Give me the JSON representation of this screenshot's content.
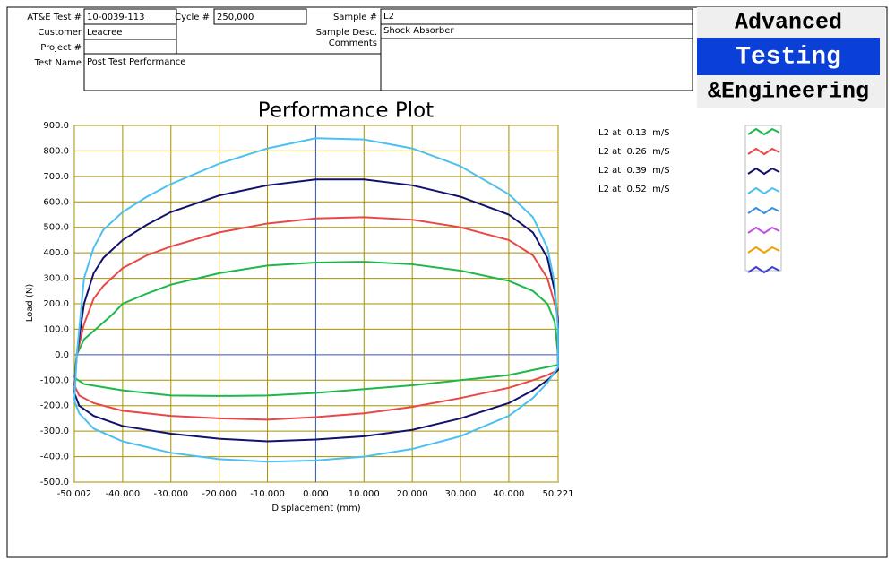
{
  "header": {
    "fields": [
      {
        "label": "AT&E Test #",
        "value": "10-0039-113"
      },
      {
        "label": "Customer",
        "value": "Leacree"
      },
      {
        "label": "Project #"
      },
      {
        "label": "Test Name",
        "value": "Post Test Performance"
      },
      {
        "label": "Cycle #",
        "value": "250,000"
      },
      {
        "label": "Sample #",
        "value": "L2"
      },
      {
        "label": "Sample Desc.",
        "value": "Shock Absorber"
      },
      {
        "label": "Comments"
      }
    ]
  },
  "logo": [
    "Advanced",
    "Testing",
    "&Engineering"
  ],
  "chart_data": {
    "type": "line",
    "title": "Performance Plot",
    "x_label": "Displacement (mm)",
    "y_label": "Load (N)",
    "xlim": [
      -50.002,
      50.221
    ],
    "ylim": [
      -500,
      900
    ],
    "grid": true,
    "xticks": [
      -50.002,
      {
        "value": -40,
        "label": "-40.000"
      },
      {
        "value": -30,
        "label": "-30.000"
      },
      {
        "value": -20,
        "label": "-20.000"
      },
      {
        "value": -10,
        "label": "-10.000"
      },
      {
        "value": 0,
        "label": "0.000"
      },
      {
        "value": 10,
        "label": "10.000"
      },
      {
        "value": 20,
        "label": "20.000"
      },
      {
        "value": 30,
        "label": "30.000"
      },
      {
        "value": 40,
        "label": "40.000"
      },
      50.221
    ],
    "yticks": [
      {
        "value": -500,
        "label": "-500.0"
      },
      {
        "value": -400,
        "label": "-400.0"
      },
      {
        "value": -300,
        "label": "-300.0"
      },
      {
        "value": -200,
        "label": "-200.0"
      },
      {
        "value": -100,
        "label": "-100.0"
      },
      {
        "value": 0,
        "label": "0.0"
      },
      {
        "value": 100,
        "label": "100.0"
      },
      {
        "value": 200,
        "label": "200.0"
      },
      {
        "value": 300,
        "label": "300.0"
      },
      {
        "value": 400,
        "label": "400.0"
      },
      {
        "value": 500,
        "label": "500.0"
      },
      {
        "value": 600,
        "label": "600.0"
      },
      {
        "value": 700,
        "label": "700.0"
      },
      {
        "value": 800,
        "label": "800.0"
      },
      {
        "value": 900,
        "label": "900.0"
      }
    ],
    "series": [
      {
        "name": "L2 at  0.13  m/S",
        "color": "#1db84a",
        "x": [
          -50,
          -49.5,
          -48,
          -45,
          -42,
          -40,
          -35,
          -30,
          -20,
          -10,
          0,
          10,
          20,
          30,
          40,
          45,
          48,
          49.5,
          50.2,
          50.2,
          45,
          40,
          30,
          20,
          10,
          0,
          -10,
          -20,
          -30,
          -40,
          -48,
          -50
        ],
        "values": [
          -90,
          0,
          60,
          110,
          160,
          200,
          240,
          275,
          320,
          350,
          362,
          365,
          355,
          330,
          290,
          250,
          200,
          130,
          0,
          -40,
          -60,
          -80,
          -100,
          -120,
          -135,
          -150,
          -160,
          -162,
          -160,
          -140,
          -115,
          -90
        ]
      },
      {
        "name": "L2 at  0.26  m/S",
        "color": "#e84848",
        "x": [
          -50,
          -49.5,
          -48,
          -46,
          -44,
          -40,
          -35,
          -30,
          -20,
          -10,
          0,
          10,
          20,
          30,
          40,
          45,
          48,
          49.5,
          50.2,
          50.2,
          48,
          45,
          40,
          30,
          20,
          10,
          0,
          -10,
          -20,
          -30,
          -40,
          -46,
          -49,
          -50
        ],
        "values": [
          -120,
          0,
          120,
          220,
          270,
          340,
          390,
          425,
          480,
          515,
          535,
          540,
          530,
          500,
          450,
          390,
          300,
          200,
          150,
          -60,
          -80,
          -100,
          -130,
          -170,
          -205,
          -230,
          -245,
          -255,
          -250,
          -240,
          -220,
          -190,
          -160,
          -120
        ]
      },
      {
        "name": "L2 at  0.39  m/S",
        "color": "#12126e",
        "x": [
          -50,
          -49.5,
          -48,
          -46,
          -44,
          -40,
          -35,
          -30,
          -20,
          -10,
          0,
          10,
          20,
          30,
          40,
          45,
          48,
          49.5,
          50.2,
          50.2,
          48,
          45,
          40,
          30,
          20,
          10,
          0,
          -10,
          -20,
          -30,
          -40,
          -46,
          -49,
          -50
        ],
        "values": [
          -150,
          0,
          200,
          320,
          380,
          450,
          510,
          560,
          625,
          665,
          688,
          688,
          665,
          620,
          550,
          480,
          380,
          250,
          130,
          -60,
          -100,
          -140,
          -190,
          -250,
          -295,
          -320,
          -333,
          -340,
          -330,
          -310,
          -280,
          -240,
          -200,
          -150
        ]
      },
      {
        "name": "L2 at  0.52  m/S",
        "color": "#4cc0f0",
        "x": [
          -50,
          -49.5,
          -48,
          -46,
          -44,
          -40,
          -35,
          -30,
          -20,
          -10,
          0,
          10,
          20,
          30,
          40,
          45,
          48,
          49.5,
          50.2,
          50.2,
          48,
          45,
          40,
          30,
          20,
          10,
          0,
          -10,
          -20,
          -30,
          -40,
          -46,
          -49,
          -50
        ],
        "values": [
          -180,
          0,
          300,
          420,
          490,
          560,
          620,
          670,
          750,
          810,
          850,
          845,
          810,
          740,
          630,
          540,
          420,
          280,
          100,
          -50,
          -110,
          -170,
          -240,
          -320,
          -370,
          -400,
          -415,
          -420,
          -410,
          -385,
          -340,
          -290,
          -230,
          -180
        ]
      }
    ],
    "unused_plot_colors": [
      "#3a8fd8",
      "#c050e0",
      "#f0a000",
      "#4040d0"
    ]
  }
}
